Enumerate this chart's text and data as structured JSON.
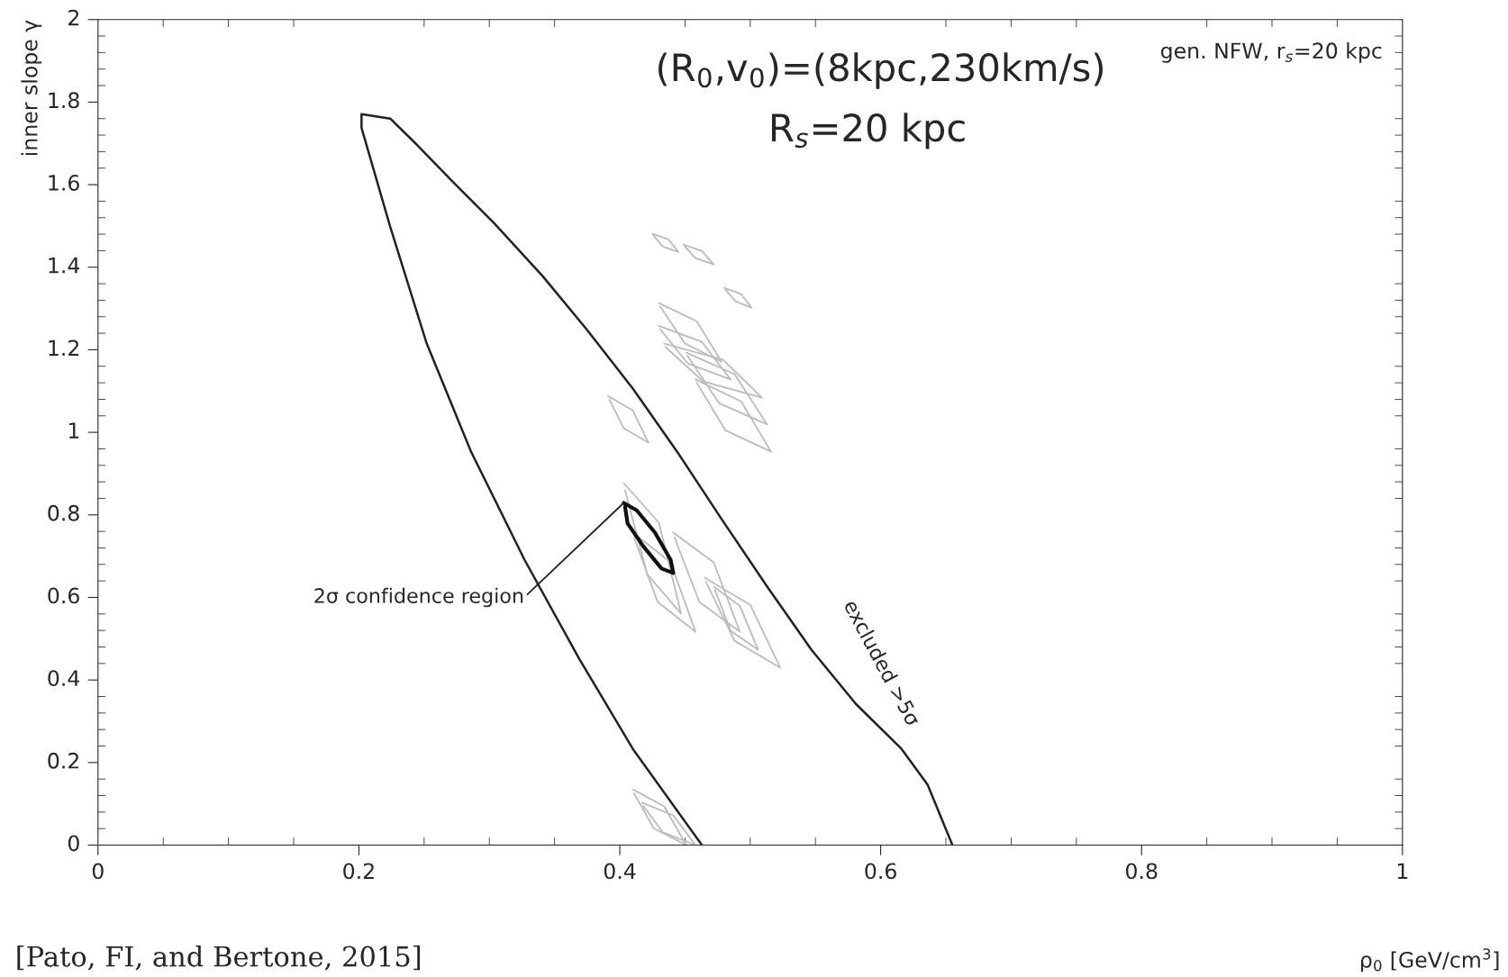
{
  "chart_data": {
    "type": "line",
    "xlabel": "ρ$_{0}$ [GeV/cm$^{3}$]",
    "ylabel": "inner slope γ",
    "xlim": [
      0,
      1
    ],
    "ylim": [
      0,
      2
    ],
    "xticks": [
      0,
      0.2,
      0.4,
      0.6,
      0.8,
      1
    ],
    "yticks": [
      0,
      0.2,
      0.4,
      0.6,
      0.8,
      1,
      1.2,
      1.4,
      1.6,
      1.8,
      2
    ],
    "grid": false,
    "legend": false,
    "marker": "none",
    "line_style": "solid",
    "annotations": [
      {
        "text": "2σ confidence region",
        "x": 0.403,
        "y": 0.829
      },
      "excluded >5σ",
      "(R$_{0}$,v$_{0}$)=(8kpc,230km/s)",
      "R$_{s}$=20 kpc",
      "gen. NFW, r$_{s}$=20 kpc",
      "[Pato, FI, and Bertone, 2015]"
    ],
    "series": [
      {
        "color": "#222222",
        "x": [
          0.463,
          0.41,
          0.369,
          0.327,
          0.286,
          0.252,
          0.224,
          0.202,
          0.202,
          0.224,
          0.245,
          0.272,
          0.303,
          0.341,
          0.375,
          0.41,
          0.444,
          0.478,
          0.513,
          0.547,
          0.581,
          0.616,
          0.636,
          0.655
        ],
        "values": [
          0,
          0.233,
          0.451,
          0.691,
          0.953,
          1.215,
          1.498,
          1.738,
          1.771,
          1.76,
          1.695,
          1.607,
          1.509,
          1.378,
          1.248,
          1.106,
          0.953,
          0.79,
          0.626,
          0.473,
          0.342,
          0.233,
          0.146,
          0
        ]
      },
      {
        "color": "#bbbbbb",
        "x": [
          0.425,
          0.437,
          0.445,
          0.433,
          0.426
        ],
        "values": [
          1.481,
          1.468,
          1.437,
          1.45,
          1.476
        ]
      },
      {
        "color": "#bbbbbb",
        "x": [
          0.449,
          0.463,
          0.472,
          0.458,
          0.45
        ],
        "values": [
          1.455,
          1.439,
          1.407,
          1.422,
          1.45
        ]
      },
      {
        "color": "#bbbbbb",
        "x": [
          0.48,
          0.493,
          0.501,
          0.489,
          0.481
        ],
        "values": [
          1.35,
          1.335,
          1.302,
          1.317,
          1.345
        ]
      },
      {
        "color": "#bbbbbb",
        "x": [
          0.43,
          0.459,
          0.478,
          0.45,
          0.431
        ],
        "values": [
          1.313,
          1.269,
          1.171,
          1.215,
          1.305
        ]
      },
      {
        "color": "#bbbbbb",
        "x": [
          0.43,
          0.463,
          0.485,
          0.452,
          0.431
        ],
        "values": [
          1.258,
          1.219,
          1.128,
          1.167,
          1.25
        ]
      },
      {
        "color": "#bbbbbb",
        "x": [
          0.434,
          0.479,
          0.509,
          0.464,
          0.435
        ],
        "values": [
          1.215,
          1.176,
          1.084,
          1.123,
          1.207
        ]
      },
      {
        "color": "#bbbbbb",
        "x": [
          0.451,
          0.488,
          0.513,
          0.476,
          0.452
        ],
        "values": [
          1.193,
          1.141,
          1.019,
          1.071,
          1.185
        ]
      },
      {
        "color": "#bbbbbb",
        "x": [
          0.458,
          0.493,
          0.516,
          0.481,
          0.459
        ],
        "values": [
          1.128,
          1.075,
          0.953,
          1.005,
          1.12
        ]
      },
      {
        "color": "#bbbbbb",
        "x": [
          0.391,
          0.41,
          0.422,
          0.403,
          0.392
        ],
        "values": [
          1.088,
          1.053,
          0.975,
          1.01,
          1.08
        ]
      },
      {
        "color": "#bbbbbb",
        "x": [
          0.403,
          0.43,
          0.447,
          0.421,
          0.404
        ],
        "values": [
          0.877,
          0.781,
          0.561,
          0.656,
          0.86
        ]
      },
      {
        "color": "#bbbbbb",
        "x": [
          0.41,
          0.439,
          0.458,
          0.429,
          0.411
        ],
        "values": [
          0.757,
          0.685,
          0.517,
          0.589,
          0.745
        ]
      },
      {
        "color": "#bbbbbb",
        "x": [
          0.441,
          0.472,
          0.492,
          0.461,
          0.442
        ],
        "values": [
          0.757,
          0.685,
          0.517,
          0.589,
          0.745
        ]
      },
      {
        "color": "#bbbbbb",
        "x": [
          0.465,
          0.5,
          0.523,
          0.488,
          0.466
        ],
        "values": [
          0.648,
          0.582,
          0.43,
          0.495,
          0.638
        ]
      },
      {
        "color": "#bbbbbb",
        "x": [
          0.472,
          0.492,
          0.506,
          0.485,
          0.473
        ],
        "values": [
          0.626,
          0.58,
          0.473,
          0.519,
          0.618
        ]
      },
      {
        "color": "#bbbbbb",
        "x": [
          0.41,
          0.434,
          0.451,
          0.426,
          0.411
        ],
        "values": [
          0.135,
          0.094,
          0.0,
          0.041,
          0.125
        ]
      },
      {
        "color": "#bbbbbb",
        "x": [
          0.417,
          0.441,
          0.458,
          0.433,
          0.418
        ],
        "values": [
          0.103,
          0.072,
          0.0,
          0.031,
          0.095
        ]
      },
      {
        "color": "#111111",
        "x": [
          0.403,
          0.413,
          0.427,
          0.439,
          0.441,
          0.432,
          0.418,
          0.406,
          0.404
        ],
        "values": [
          0.829,
          0.811,
          0.757,
          0.691,
          0.659,
          0.67,
          0.724,
          0.779,
          0.82
        ]
      }
    ]
  }
}
